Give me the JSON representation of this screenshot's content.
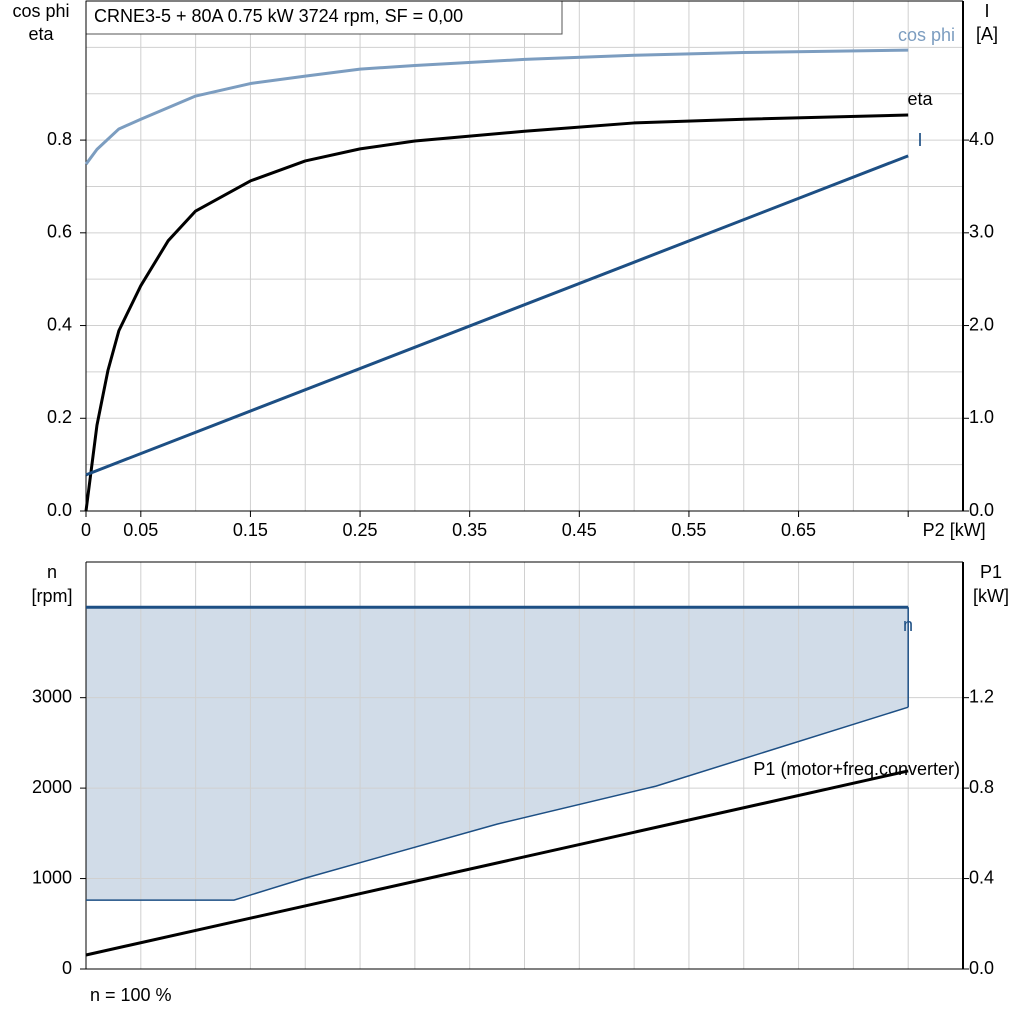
{
  "chart_data": [
    {
      "type": "line",
      "title": "CRNE3-5 + 80A   0.75 kW   3724 rpm, SF = 0,00",
      "ylabel": [
        "cos phi",
        "eta"
      ],
      "y2label": [
        "I",
        "[A]"
      ],
      "xlim": [
        0,
        0.8
      ],
      "xticks": [
        {
          "value": 0,
          "label": "0"
        },
        0.05,
        0.15,
        0.25,
        0.35,
        0.45,
        0.55,
        0.65,
        {
          "value": 0.75,
          "label": "P2 [kW]"
        }
      ],
      "xgrid": [
        0.1,
        0.2,
        0.3,
        0.4,
        0.5,
        0.6,
        0.7
      ],
      "ylim": [
        0,
        1.1
      ],
      "yticks": [
        {
          "value": 0,
          "label": "0.0"
        },
        0.2,
        0.4,
        0.6,
        0.8
      ],
      "ygrid": [
        0.1,
        0.3,
        0.5,
        0.7,
        0.9,
        1.0
      ],
      "y2lim": [
        0,
        5.5
      ],
      "y2ticks": [
        {
          "value": 0,
          "label": "0.0"
        },
        {
          "value": 1,
          "label": "1.0"
        },
        {
          "value": 2,
          "label": "2.0"
        },
        {
          "value": 3,
          "label": "3.0"
        },
        {
          "value": 4,
          "label": "4.0"
        }
      ],
      "grid": true,
      "series": [
        {
          "name": "cos phi",
          "color": "#7c9dc0",
          "x": [
            0,
            0.01,
            0.03,
            0.05,
            0.1,
            0.15,
            0.2,
            0.25,
            0.3,
            0.4,
            0.5,
            0.6,
            0.75
          ],
          "values": [
            0.748,
            0.78,
            0.824,
            0.845,
            0.895,
            0.922,
            0.938,
            0.953,
            0.961,
            0.974,
            0.983,
            0.989,
            0.994
          ]
        },
        {
          "name": "eta",
          "color": "#000000",
          "x": [
            0,
            0.01,
            0.02,
            0.03,
            0.05,
            0.075,
            0.1,
            0.15,
            0.2,
            0.25,
            0.3,
            0.4,
            0.5,
            0.6,
            0.75
          ],
          "values": [
            0,
            0.185,
            0.303,
            0.389,
            0.486,
            0.583,
            0.647,
            0.712,
            0.755,
            0.781,
            0.798,
            0.819,
            0.837,
            0.845,
            0.854
          ]
        },
        {
          "name": "I",
          "color": "#1d4f84",
          "axis": "y2",
          "x": [
            0,
            0.75
          ],
          "values": [
            0.39,
            3.83
          ]
        }
      ]
    },
    {
      "type": "line",
      "ylabel": [
        "n",
        "[rpm]"
      ],
      "y2label": [
        "P1",
        "[kW]"
      ],
      "note": "n = 100 %",
      "xlim": [
        0,
        0.8
      ],
      "xgrid": [
        0.05,
        0.1,
        0.15,
        0.2,
        0.25,
        0.3,
        0.35,
        0.4,
        0.45,
        0.5,
        0.55,
        0.6,
        0.65,
        0.7,
        0.75
      ],
      "ylim": [
        0,
        4500
      ],
      "yticks": [
        0,
        1000,
        2000,
        3000
      ],
      "y2lim": [
        0,
        1.8
      ],
      "y2ticks": [
        {
          "value": 0,
          "label": "0.0"
        },
        0.4,
        0.8,
        1.2
      ],
      "grid": true,
      "series": [
        {
          "name": "n",
          "color": "#1d4f84",
          "fill": "#d1dce8",
          "x": [
            0,
            0.75
          ],
          "values": [
            4000,
            4000
          ],
          "lower_x": [
            0,
            0.135,
            0.2,
            0.375,
            0.52,
            0.75
          ],
          "lower_values": [
            762,
            762,
            1005,
            1602,
            2022,
            2895
          ]
        },
        {
          "name": "P1 (motor+freq.converter)",
          "color": "#000000",
          "axis": "y2",
          "x": [
            0,
            0.75
          ],
          "values": [
            0.062,
            0.876
          ]
        }
      ]
    }
  ]
}
